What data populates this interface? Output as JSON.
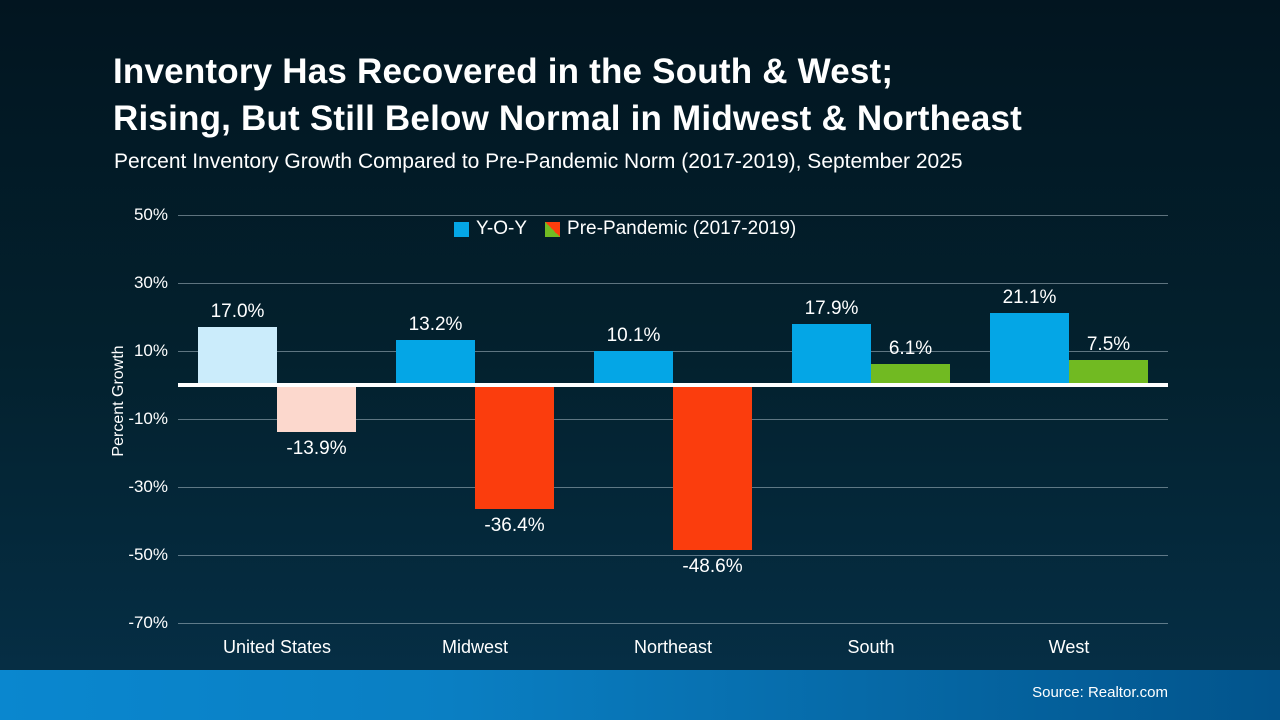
{
  "title_line1": "Inventory Has Recovered in the South & West;",
  "title_line2": "Rising, But Still Below Normal in Midwest & Northeast",
  "subtitle": "Percent Inventory Growth Compared to Pre-Pandemic Norm (2017-2019), September 2025",
  "source": "Source: Realtor.com",
  "colors": {
    "background_top": "#021520",
    "background_bottom": "#063048",
    "footer_band_left": "#0a87cf",
    "footer_band_right": "#02548c",
    "yoy_bar": "#04a6e6",
    "yoy_bar_us": "#cbecfb",
    "prepandemic_negative": "#fb3d0d",
    "prepandemic_negative_us": "#fcd8cd",
    "prepandemic_positive": "#71ba22",
    "gridline": "rgba(185,202,211,0.5)",
    "zero_line": "#ffffff",
    "text": "#ffffff"
  },
  "chart_data": {
    "type": "bar",
    "title": "Inventory Has Recovered in the South & West; Rising, But Still Below Normal in Midwest & Northeast",
    "subtitle": "Percent Inventory Growth Compared to Pre-Pandemic Norm (2017-2019), September 2025",
    "categories": [
      "United States",
      "Midwest",
      "Northeast",
      "South",
      "West"
    ],
    "series": [
      {
        "name": "Y-O-Y",
        "values": [
          17.0,
          13.2,
          10.1,
          17.9,
          21.1
        ],
        "labels": [
          "17.0%",
          "13.2%",
          "10.1%",
          "17.9%",
          "21.1%"
        ],
        "bar_colors": [
          "#cbecfb",
          "#04a6e6",
          "#04a6e6",
          "#04a6e6",
          "#04a6e6"
        ]
      },
      {
        "name": "Pre-Pandemic (2017-2019)",
        "values": [
          -13.9,
          -36.4,
          -48.6,
          6.1,
          7.5
        ],
        "labels": [
          "-13.9%",
          "-36.4%",
          "-48.6%",
          "6.1%",
          "7.5%"
        ],
        "bar_colors": [
          "#fcd8cd",
          "#fb3d0d",
          "#fb3d0d",
          "#71ba22",
          "#71ba22"
        ]
      }
    ],
    "ylabel": "Percent Growth",
    "xlabel": "",
    "ylim": [
      -70,
      50
    ],
    "yticks": [
      50,
      30,
      10,
      -10,
      -30,
      -50,
      -70
    ],
    "ytick_labels": [
      "50%",
      "30%",
      "10%",
      "-10%",
      "-30%",
      "-50%",
      "-70%"
    ],
    "grid": true,
    "legend_position": "top-center",
    "legend": [
      {
        "label": "Y-O-Y",
        "swatch": "#04a6e6"
      },
      {
        "label": "Pre-Pandemic (2017-2019)",
        "swatch": [
          "#fb3d0d",
          "#71ba22"
        ]
      }
    ]
  }
}
